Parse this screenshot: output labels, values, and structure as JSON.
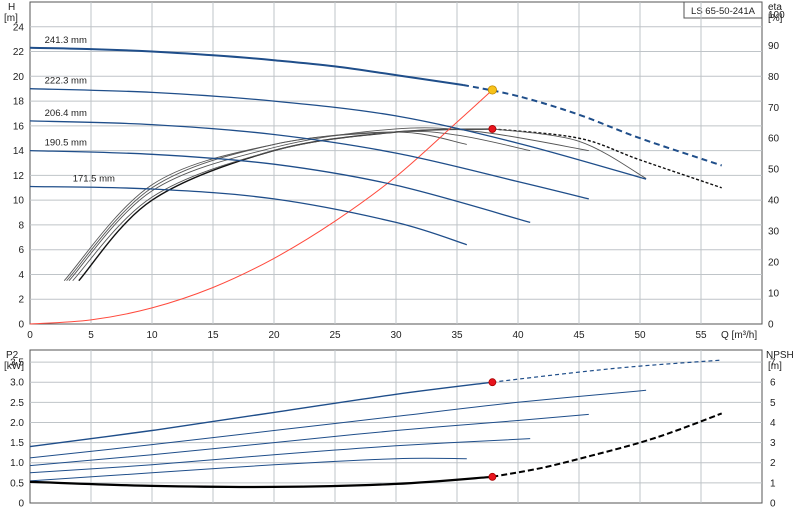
{
  "chart_data": [
    {
      "type": "line",
      "model_label": "LS 65-50-241A",
      "ylabel_left": "H",
      "ylabel_left_unit": "[m]",
      "ylabel_right": "eta",
      "ylabel_right_unit": "[%]",
      "xlabel": "Q [m³/h]",
      "xlim": [
        0,
        60
      ],
      "ylim": [
        0,
        26
      ],
      "eta_lim": [
        0,
        104
      ],
      "x_ticks": [
        0,
        5,
        10,
        15,
        20,
        25,
        30,
        35,
        40,
        45,
        50,
        55
      ],
      "y_ticks": [
        0,
        2,
        4,
        6,
        8,
        10,
        12,
        14,
        16,
        18,
        20,
        22,
        24
      ],
      "eta_ticks": [
        0,
        10,
        20,
        30,
        40,
        50,
        60,
        70,
        80,
        90,
        100
      ],
      "grid": true,
      "head_series": [
        {
          "name": "241.3 mm",
          "x": [
            0,
            5,
            10,
            15,
            20,
            25,
            30,
            35.5
          ],
          "y": [
            22.3,
            22.2,
            22.0,
            21.7,
            21.3,
            20.8,
            20.1,
            19.3
          ],
          "dashed_x": [
            35.5,
            40,
            45,
            50,
            56.7
          ],
          "dashed_y": [
            19.3,
            18.4,
            16.9,
            15.0,
            12.8
          ]
        },
        {
          "name": "222.3 mm",
          "x": [
            0,
            10,
            20,
            30,
            40,
            50.5
          ],
          "y": [
            19.0,
            18.7,
            18.0,
            16.8,
            14.6,
            11.7
          ]
        },
        {
          "name": "206.4 mm",
          "x": [
            0,
            10,
            20,
            30,
            40,
            45.8
          ],
          "y": [
            16.4,
            16.1,
            15.3,
            13.8,
            11.5,
            10.1
          ]
        },
        {
          "name": "190.5 mm",
          "x": [
            0,
            10,
            20,
            30,
            41
          ],
          "y": [
            14.0,
            13.7,
            12.9,
            11.2,
            8.2
          ]
        },
        {
          "name": "171.5 mm",
          "x": [
            0,
            10,
            20,
            30,
            35.8
          ],
          "y": [
            11.1,
            10.9,
            10.1,
            8.2,
            6.4
          ]
        }
      ],
      "eta_series": [
        {
          "name": "241.3 mm",
          "x": [
            4,
            10,
            20,
            30,
            38,
            45,
            50,
            56.7
          ],
          "y": [
            14,
            40,
            56,
            62,
            63,
            60,
            53,
            44
          ]
        },
        {
          "name": "222.3 mm",
          "x": [
            3.5,
            10,
            20,
            30,
            38,
            45,
            50.5
          ],
          "y": [
            14,
            41,
            56,
            62,
            63,
            59,
            47
          ]
        },
        {
          "name": "206.4 mm",
          "x": [
            3.2,
            10,
            20,
            30,
            37,
            45.8
          ],
          "y": [
            14,
            43,
            57,
            63,
            62,
            56
          ]
        },
        {
          "name": "190.5 mm",
          "x": [
            3,
            10,
            20,
            30,
            35,
            41
          ],
          "y": [
            14,
            44,
            58,
            62,
            61,
            56
          ]
        },
        {
          "name": "171.5 mm",
          "x": [
            2.8,
            10,
            20,
            30,
            35.8
          ],
          "y": [
            14,
            45,
            58,
            62,
            58
          ]
        }
      ],
      "system_curve": {
        "x": [
          0,
          5,
          10,
          15,
          20,
          25,
          30,
          35,
          37.9
        ],
        "y": [
          0,
          0.33,
          1.3,
          2.95,
          5.3,
          8.3,
          11.9,
          16.3,
          18.9
        ]
      },
      "duty_point_head": {
        "x": 37.9,
        "y": 18.9
      },
      "duty_point_eta": {
        "x": 37.9,
        "y": 63
      }
    },
    {
      "type": "line",
      "ylabel_left": "P2",
      "ylabel_left_unit": "[kW]",
      "ylabel_right": "NPSH",
      "ylabel_right_unit": "[m]",
      "xlim": [
        0,
        60
      ],
      "ylim": [
        0,
        3.8
      ],
      "npsh_lim": [
        0,
        7.6
      ],
      "y_ticks": [
        0,
        0.5,
        1.0,
        1.5,
        2.0,
        2.5,
        3.0,
        3.5
      ],
      "y_tick_labels": [
        "0",
        "0.5",
        "1.0",
        "1.5",
        "2.0",
        "2.5",
        "3.0",
        "3.5"
      ],
      "npsh_ticks": [
        0,
        1,
        2,
        3,
        4,
        5,
        6,
        7
      ],
      "grid": true,
      "power_series": [
        {
          "name": "241.3 mm",
          "x": [
            0,
            10,
            20,
            30,
            37.9
          ],
          "y": [
            1.4,
            1.8,
            2.25,
            2.7,
            3.0
          ],
          "dashed_x": [
            37.9,
            45,
            50,
            56.7
          ],
          "dashed_y": [
            3.0,
            3.25,
            3.4,
            3.55
          ]
        },
        {
          "name": "222.3 mm",
          "x": [
            0,
            10,
            20,
            30,
            40,
            50.5
          ],
          "y": [
            1.12,
            1.45,
            1.8,
            2.15,
            2.5,
            2.8
          ]
        },
        {
          "name": "206.4 mm",
          "x": [
            0,
            10,
            20,
            30,
            40,
            45.8
          ],
          "y": [
            0.93,
            1.2,
            1.5,
            1.8,
            2.05,
            2.2
          ]
        },
        {
          "name": "190.5 mm",
          "x": [
            0,
            10,
            20,
            30,
            41
          ],
          "y": [
            0.75,
            0.95,
            1.2,
            1.42,
            1.6
          ]
        },
        {
          "name": "171.5 mm",
          "x": [
            0,
            10,
            20,
            30,
            35.8
          ],
          "y": [
            0.55,
            0.75,
            0.95,
            1.1,
            1.1
          ]
        }
      ],
      "npsh_curve": {
        "x": [
          0,
          10,
          20,
          30,
          37.9
        ],
        "y": [
          1.05,
          0.85,
          0.8,
          0.95,
          1.3
        ],
        "dashed_x": [
          37.9,
          42,
          46,
          50,
          53,
          56.7
        ],
        "dashed_y": [
          1.3,
          1.75,
          2.35,
          3.0,
          3.6,
          4.45
        ]
      },
      "duty_point_power": {
        "x": 37.9,
        "y": 3.0
      },
      "duty_point_npsh": {
        "x": 37.9,
        "y": 1.3
      }
    }
  ]
}
